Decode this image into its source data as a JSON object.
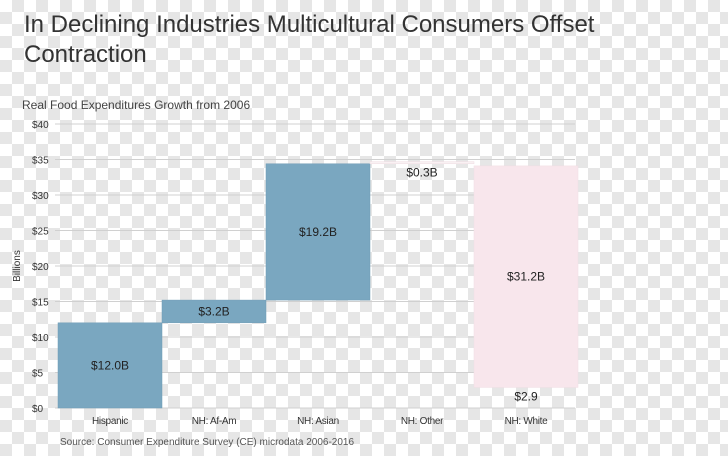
{
  "header": {
    "title": "In Declining Industries Multicultural Consumers Offset Contraction",
    "subtitle": "Real Food Expenditures Growth from 2006"
  },
  "footer": {
    "source": "Source: Consumer Expenditure Survey (CE) microdata 2006-2016"
  },
  "chart_data": {
    "type": "bar",
    "subtype": "waterfall",
    "ylabel": "Billions",
    "ylim": [
      0,
      40
    ],
    "yticks": [
      "$0",
      "$5",
      "$10",
      "$15",
      "$20",
      "$25",
      "$30",
      "$35",
      "$40"
    ],
    "grid": true,
    "categories": [
      "Hispanic",
      "NH: Af-Am",
      "NH: Asian",
      "NH: Other",
      "NH: White"
    ],
    "bars": [
      {
        "category": "Hispanic",
        "start": 0,
        "end": 12.0,
        "label": "$12.0B",
        "color": "#7aa7c0"
      },
      {
        "category": "NH: Af-Am",
        "start": 12.0,
        "end": 15.2,
        "label": "$3.2B",
        "color": "#7aa7c0"
      },
      {
        "category": "NH: Asian",
        "start": 15.2,
        "end": 34.4,
        "label": "$19.2B",
        "color": "#7aa7c0"
      },
      {
        "category": "NH: Other",
        "start": 34.4,
        "end": 34.7,
        "label": "$0.3B",
        "color": "#f9f1f3"
      },
      {
        "category": "NH: White",
        "start": 2.9,
        "end": 34.1,
        "label": "$31.2B",
        "color": "#f8e6ec"
      }
    ],
    "end_label": "$2.9"
  }
}
